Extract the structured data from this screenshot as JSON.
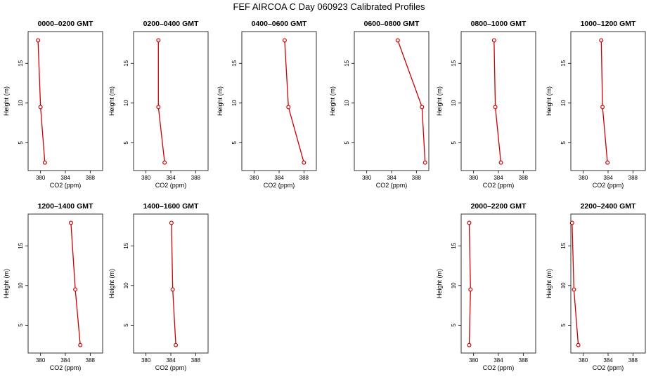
{
  "title": "FEF AIRCOA C  Day 060923  Calibrated Profiles",
  "chart_data": {
    "type": "line",
    "xlabel": "CO2 (ppm)",
    "ylabel": "Height (m)",
    "xlim": [
      378,
      390
    ],
    "ylim": [
      1.5,
      19
    ],
    "xticks": [
      380,
      384,
      388
    ],
    "yticks": [
      5,
      10,
      15
    ],
    "line_color": "#cc0000",
    "grid": false,
    "panels": [
      {
        "title": "0000–0200 GMT",
        "points": [
          {
            "x": 379.6,
            "y": 17.9
          },
          {
            "x": 380.0,
            "y": 9.5
          },
          {
            "x": 380.7,
            "y": 2.5
          }
        ]
      },
      {
        "title": "0200–0400 GMT",
        "points": [
          {
            "x": 382.0,
            "y": 17.9
          },
          {
            "x": 382.0,
            "y": 9.5
          },
          {
            "x": 383.0,
            "y": 2.5
          }
        ]
      },
      {
        "title": "0400–0600 GMT",
        "points": [
          {
            "x": 384.9,
            "y": 17.9
          },
          {
            "x": 385.5,
            "y": 9.5
          },
          {
            "x": 388.0,
            "y": 2.5
          }
        ]
      },
      {
        "title": "0600–0800 GMT",
        "points": [
          {
            "x": 385.0,
            "y": 17.9
          },
          {
            "x": 388.9,
            "y": 9.5
          },
          {
            "x": 389.4,
            "y": 2.5
          }
        ]
      },
      {
        "title": "0800–1000 GMT",
        "points": [
          {
            "x": 383.3,
            "y": 17.9
          },
          {
            "x": 383.5,
            "y": 9.5
          },
          {
            "x": 384.4,
            "y": 2.5
          }
        ]
      },
      {
        "title": "1000–1200 GMT",
        "points": [
          {
            "x": 382.9,
            "y": 17.9
          },
          {
            "x": 383.1,
            "y": 9.5
          },
          {
            "x": 383.9,
            "y": 2.5
          }
        ]
      },
      {
        "title": "1200–1400 GMT",
        "points": [
          {
            "x": 384.9,
            "y": 17.9
          },
          {
            "x": 385.6,
            "y": 9.5
          },
          {
            "x": 386.4,
            "y": 2.5
          }
        ]
      },
      {
        "title": "1400–1600 GMT",
        "points": [
          {
            "x": 384.1,
            "y": 17.9
          },
          {
            "x": 384.3,
            "y": 9.5
          },
          {
            "x": 384.8,
            "y": 2.5
          }
        ]
      },
      {
        "title": "2000–2200 GMT",
        "points": [
          {
            "x": 379.3,
            "y": 17.9
          },
          {
            "x": 379.5,
            "y": 9.5
          },
          {
            "x": 379.3,
            "y": 2.5
          }
        ]
      },
      {
        "title": "2200–2400 GMT",
        "points": [
          {
            "x": 378.2,
            "y": 17.9
          },
          {
            "x": 378.5,
            "y": 9.5
          },
          {
            "x": 379.2,
            "y": 2.5
          }
        ]
      }
    ]
  }
}
